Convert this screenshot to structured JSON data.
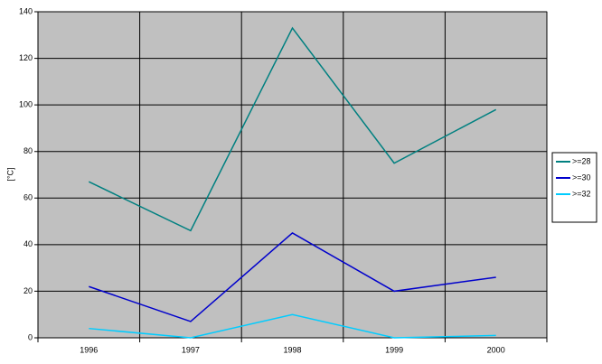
{
  "chart_data": {
    "type": "line",
    "y_label": "[°C]",
    "categories": [
      "1996",
      "1997",
      "1998",
      "1999",
      "2000"
    ],
    "series": [
      {
        "name": ">=28",
        "color": "#008080",
        "values": [
          67,
          46,
          133,
          75,
          98
        ]
      },
      {
        "name": ">=30",
        "color": "#0000cc",
        "values": [
          22,
          7,
          45,
          20,
          26
        ]
      },
      {
        "name": ">=32",
        "color": "#00ccff",
        "values": [
          4,
          0,
          10,
          0,
          1
        ]
      }
    ],
    "ylim": [
      0,
      140
    ],
    "yticks": [
      0,
      20,
      40,
      60,
      80,
      100,
      120,
      140
    ],
    "grid": true,
    "legend": "right"
  }
}
